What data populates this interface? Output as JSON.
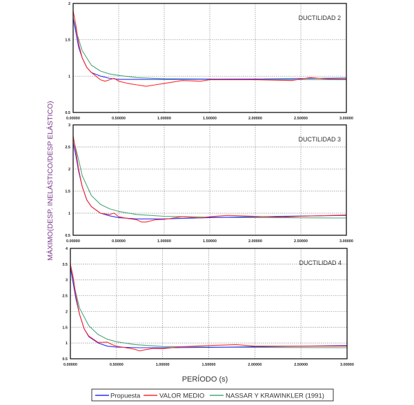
{
  "chart_data": {
    "type": "line",
    "ylabel": "MÁXIMO(DESP. INELÁSTICO/DESP ELÁSTICO)",
    "xlabel": "PERÍODO (s)",
    "legend": {
      "placement": "bottom",
      "entries": [
        "Propuesta",
        "VALOR MEDIO",
        "NASSAR Y KRAWINKLER (1991)"
      ]
    },
    "series_colors": {
      "Propuesta": "#2a2aff",
      "VALOR MEDIO": "#ff2a2a",
      "NASSAR Y KRAWINKLER (1991)": "#4aa57a"
    },
    "grid": true,
    "xlim": [
      0,
      3
    ],
    "x_ticks": [
      0,
      0.5,
      1,
      1.5,
      2,
      2.5,
      3
    ],
    "x_tick_labels": [
      "0.00000",
      "0.50000",
      "1.00000",
      "1.50000",
      "2.00000",
      "2.50000",
      "3.00000"
    ],
    "panels": [
      {
        "title": "DUCTILIDAD 2",
        "ylim": [
          0.5,
          2
        ],
        "y_ticks": [
          0.5,
          1,
          1.5,
          2
        ],
        "y_tick_labels": [
          "0.5",
          "1",
          "1.5",
          "2"
        ],
        "series": [
          {
            "name": "Propuesta",
            "points": [
              [
                0,
                1.8
              ],
              [
                0.03,
                1.6
              ],
              [
                0.06,
                1.4
              ],
              [
                0.1,
                1.25
              ],
              [
                0.15,
                1.12
              ],
              [
                0.2,
                1.05
              ],
              [
                0.3,
                1.0
              ],
              [
                0.4,
                0.97
              ],
              [
                0.5,
                0.955
              ],
              [
                1,
                0.955
              ],
              [
                2,
                0.96
              ],
              [
                3,
                0.975
              ]
            ]
          },
          {
            "name": "VALOR MEDIO",
            "points": [
              [
                0,
                1.9
              ],
              [
                0.03,
                1.7
              ],
              [
                0.06,
                1.45
              ],
              [
                0.1,
                1.25
              ],
              [
                0.15,
                1.12
              ],
              [
                0.2,
                1.05
              ],
              [
                0.25,
                1.0
              ],
              [
                0.3,
                0.95
              ],
              [
                0.35,
                0.93
              ],
              [
                0.4,
                0.95
              ],
              [
                0.45,
                0.97
              ],
              [
                0.5,
                0.93
              ],
              [
                0.6,
                0.9
              ],
              [
                0.7,
                0.88
              ],
              [
                0.8,
                0.86
              ],
              [
                0.9,
                0.88
              ],
              [
                1.0,
                0.9
              ],
              [
                1.1,
                0.92
              ],
              [
                1.2,
                0.94
              ],
              [
                1.4,
                0.93
              ],
              [
                1.5,
                0.95
              ],
              [
                2.0,
                0.95
              ],
              [
                2.4,
                0.94
              ],
              [
                2.6,
                0.98
              ],
              [
                2.8,
                0.96
              ],
              [
                3.0,
                0.96
              ]
            ]
          },
          {
            "name": "NASSAR Y KRAWINKLER (1991)",
            "points": [
              [
                0,
                1.8
              ],
              [
                0.05,
                1.55
              ],
              [
                0.1,
                1.35
              ],
              [
                0.2,
                1.15
              ],
              [
                0.3,
                1.07
              ],
              [
                0.4,
                1.03
              ],
              [
                0.5,
                1.01
              ],
              [
                0.7,
                0.98
              ],
              [
                1.0,
                0.965
              ],
              [
                2,
                0.955
              ],
              [
                3,
                0.95
              ]
            ]
          }
        ]
      },
      {
        "title": "DUCTILIDAD 3",
        "ylim": [
          0.5,
          3
        ],
        "y_ticks": [
          0.5,
          1,
          1.5,
          2,
          2.5,
          3
        ],
        "y_tick_labels": [
          "0.5",
          "1",
          "1.5",
          "2",
          "2.5",
          "3"
        ],
        "series": [
          {
            "name": "Propuesta",
            "points": [
              [
                0,
                2.6
              ],
              [
                0.03,
                2.3
              ],
              [
                0.06,
                1.95
              ],
              [
                0.1,
                1.6
              ],
              [
                0.15,
                1.3
              ],
              [
                0.2,
                1.15
              ],
              [
                0.3,
                1.0
              ],
              [
                0.4,
                0.94
              ],
              [
                0.5,
                0.9
              ],
              [
                0.7,
                0.87
              ],
              [
                1,
                0.87
              ],
              [
                1.5,
                0.9
              ],
              [
                2,
                0.92
              ],
              [
                3,
                0.95
              ]
            ]
          },
          {
            "name": "VALOR MEDIO",
            "points": [
              [
                0,
                2.75
              ],
              [
                0.03,
                2.4
              ],
              [
                0.06,
                2.0
              ],
              [
                0.1,
                1.6
              ],
              [
                0.15,
                1.3
              ],
              [
                0.2,
                1.15
              ],
              [
                0.3,
                1.0
              ],
              [
                0.4,
                0.97
              ],
              [
                0.45,
                1.0
              ],
              [
                0.5,
                0.92
              ],
              [
                0.6,
                0.88
              ],
              [
                0.7,
                0.85
              ],
              [
                0.75,
                0.8
              ],
              [
                0.8,
                0.8
              ],
              [
                0.9,
                0.85
              ],
              [
                1.0,
                0.86
              ],
              [
                1.1,
                0.89
              ],
              [
                1.2,
                0.92
              ],
              [
                1.4,
                0.89
              ],
              [
                1.5,
                0.92
              ],
              [
                1.7,
                0.95
              ],
              [
                2.0,
                0.93
              ],
              [
                2.3,
                0.91
              ],
              [
                2.5,
                0.93
              ],
              [
                3,
                0.96
              ]
            ]
          },
          {
            "name": "NASSAR Y KRAWINKLER (1991)",
            "points": [
              [
                0,
                2.7
              ],
              [
                0.05,
                2.3
              ],
              [
                0.1,
                1.85
              ],
              [
                0.2,
                1.4
              ],
              [
                0.3,
                1.2
              ],
              [
                0.4,
                1.1
              ],
              [
                0.5,
                1.04
              ],
              [
                0.7,
                0.97
              ],
              [
                1.0,
                0.93
              ],
              [
                1.5,
                0.91
              ],
              [
                2,
                0.9
              ],
              [
                3,
                0.89
              ]
            ]
          }
        ]
      },
      {
        "title": "DUCTILIDAD 4",
        "ylim": [
          0.5,
          4
        ],
        "y_ticks": [
          0.5,
          1,
          1.5,
          2,
          2.5,
          3,
          3.5,
          4
        ],
        "y_tick_labels": [
          "0.5",
          "1",
          "1.5",
          "2",
          "2.5",
          "3",
          "3.5",
          "4"
        ],
        "series": [
          {
            "name": "Propuesta",
            "points": [
              [
                0,
                3.4
              ],
              [
                0.03,
                2.9
              ],
              [
                0.06,
                2.4
              ],
              [
                0.1,
                1.9
              ],
              [
                0.15,
                1.45
              ],
              [
                0.2,
                1.2
              ],
              [
                0.3,
                1.0
              ],
              [
                0.4,
                0.9
              ],
              [
                0.5,
                0.87
              ],
              [
                0.75,
                0.85
              ],
              [
                1,
                0.85
              ],
              [
                1.5,
                0.86
              ],
              [
                2,
                0.88
              ],
              [
                3,
                0.92
              ]
            ]
          },
          {
            "name": "VALOR MEDIO",
            "points": [
              [
                0,
                3.5
              ],
              [
                0.03,
                3.1
              ],
              [
                0.06,
                2.5
              ],
              [
                0.1,
                1.9
              ],
              [
                0.15,
                1.45
              ],
              [
                0.2,
                1.22
              ],
              [
                0.3,
                1.02
              ],
              [
                0.35,
                1.02
              ],
              [
                0.4,
                1.03
              ],
              [
                0.45,
                0.95
              ],
              [
                0.5,
                0.9
              ],
              [
                0.6,
                0.85
              ],
              [
                0.7,
                0.8
              ],
              [
                0.75,
                0.75
              ],
              [
                0.8,
                0.78
              ],
              [
                0.9,
                0.83
              ],
              [
                1.0,
                0.82
              ],
              [
                1.2,
                0.88
              ],
              [
                1.5,
                0.92
              ],
              [
                1.8,
                0.95
              ],
              [
                2.0,
                0.9
              ],
              [
                2.5,
                0.9
              ],
              [
                3,
                0.9
              ]
            ]
          },
          {
            "name": "NASSAR Y KRAWINKLER (1991)",
            "points": [
              [
                0,
                3.4
              ],
              [
                0.05,
                2.7
              ],
              [
                0.1,
                2.1
              ],
              [
                0.2,
                1.55
              ],
              [
                0.3,
                1.27
              ],
              [
                0.4,
                1.12
              ],
              [
                0.5,
                1.04
              ],
              [
                0.7,
                0.95
              ],
              [
                1.0,
                0.89
              ],
              [
                1.5,
                0.87
              ],
              [
                2,
                0.86
              ],
              [
                3,
                0.85
              ]
            ]
          }
        ]
      }
    ]
  }
}
